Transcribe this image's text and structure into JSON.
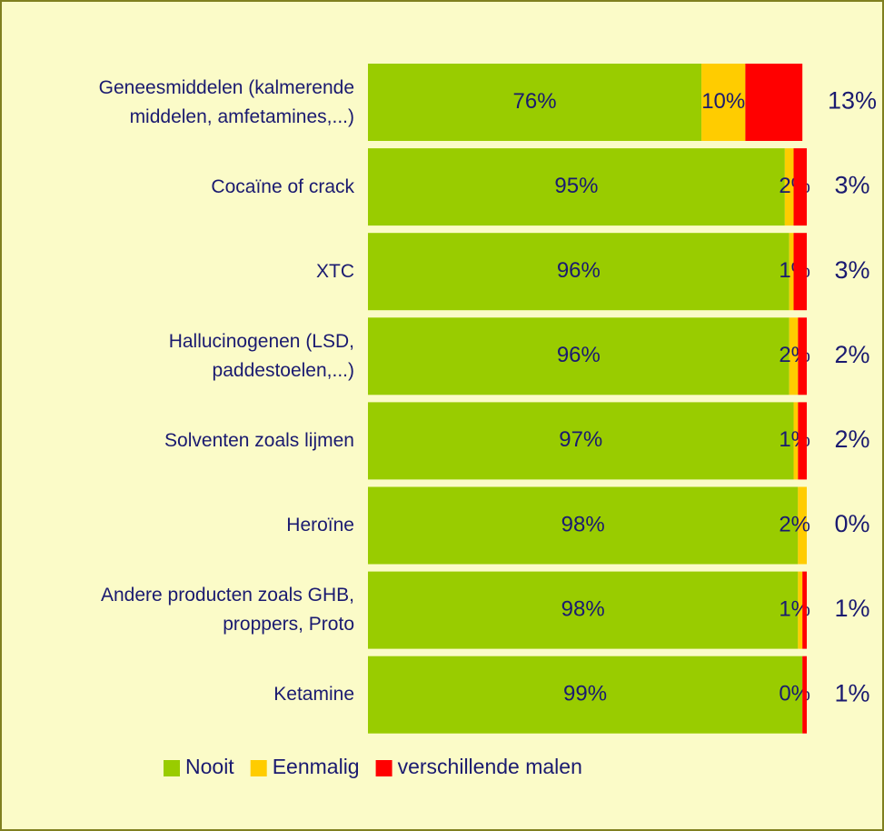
{
  "chart_data": {
    "type": "stacked-bar-horizontal",
    "categories": [
      "Geneesmiddelen (kalmerende\nmiddelen, amfetamines,...)",
      "Cocaïne of crack",
      "XTC",
      "Hallucinogenen (LSD,\npaddestoelen,...)",
      "Solventen zoals lijmen",
      "Heroïne",
      "Andere producten zoals GHB,\nproppers, Proto",
      "Ketamine"
    ],
    "series": [
      {
        "name": "Nooit",
        "color": "#99cc00",
        "values": [
          76,
          95,
          96,
          96,
          97,
          98,
          98,
          99
        ],
        "value_labels": [
          "76%",
          "95%",
          "96%",
          "96%",
          "97%",
          "98%",
          "98%",
          "99%"
        ]
      },
      {
        "name": "Eenmalig",
        "color": "#ffcc00",
        "values": [
          10,
          2,
          1,
          2,
          1,
          2,
          1,
          0
        ],
        "value_labels": [
          "10%",
          "2%",
          "1%",
          "2%",
          "1%",
          "2%",
          "1%",
          "0%"
        ]
      },
      {
        "name": "verschillende malen",
        "color": "#ff0000",
        "values": [
          13,
          3,
          3,
          2,
          2,
          0,
          1,
          1
        ],
        "value_labels": [
          "13%",
          "3%",
          "3%",
          "2%",
          "2%",
          "0%",
          "1%",
          "1%"
        ]
      }
    ],
    "xlim": [
      0,
      100
    ],
    "legend": "bottom"
  }
}
